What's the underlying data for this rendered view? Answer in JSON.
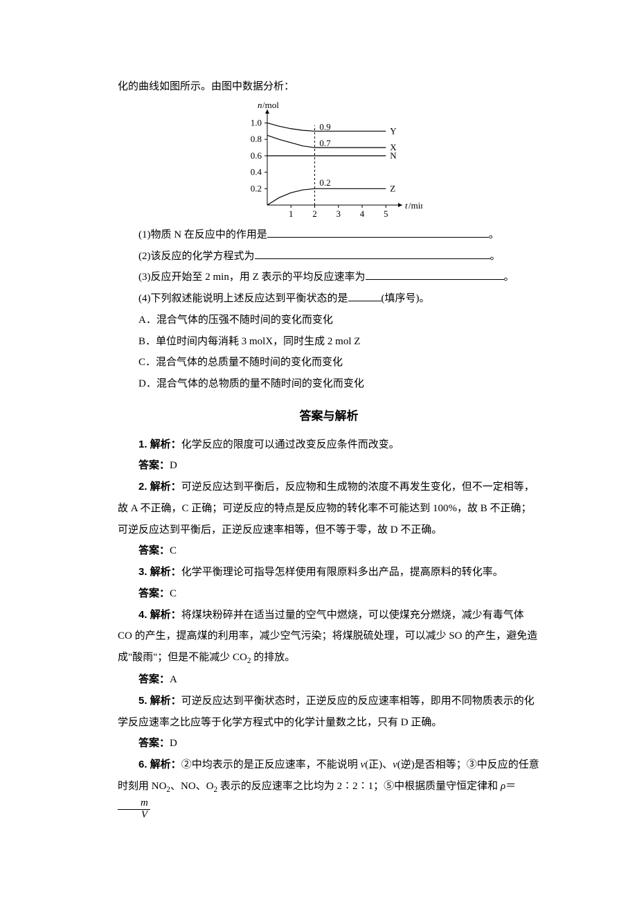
{
  "intro_line": "化的曲线如图所示。由图中数据分析：",
  "chart": {
    "type": "line",
    "x_axis_label": "t/min",
    "y_axis_label": "n/mol",
    "x_ticks": [
      1,
      2,
      3,
      4,
      5
    ],
    "y_ticks": [
      0.2,
      0.4,
      0.6,
      0.8,
      1.0
    ],
    "x_range": [
      0,
      5.4
    ],
    "y_range": [
      0,
      1.08
    ],
    "series": [
      {
        "name": "Y",
        "color": "#000",
        "values": [
          [
            0,
            1.0
          ],
          [
            0.5,
            0.96
          ],
          [
            1,
            0.93
          ],
          [
            1.5,
            0.91
          ],
          [
            2,
            0.9
          ],
          [
            3,
            0.9
          ],
          [
            4,
            0.9
          ],
          [
            5,
            0.9
          ]
        ],
        "end_label": "Y",
        "annot": {
          "x": 2.2,
          "y": 0.9,
          "text": "0.9"
        }
      },
      {
        "name": "X",
        "color": "#000",
        "values": [
          [
            0,
            0.85
          ],
          [
            0.5,
            0.8
          ],
          [
            1,
            0.76
          ],
          [
            1.5,
            0.72
          ],
          [
            2,
            0.7
          ],
          [
            3,
            0.7
          ],
          [
            4,
            0.7
          ],
          [
            5,
            0.7
          ]
        ],
        "end_label": "X",
        "annot": {
          "x": 2.2,
          "y": 0.7,
          "text": "0.7"
        }
      },
      {
        "name": "N",
        "color": "#000",
        "values": [
          [
            0,
            0.6
          ],
          [
            1,
            0.6
          ],
          [
            2,
            0.6
          ],
          [
            3,
            0.6
          ],
          [
            4,
            0.6
          ],
          [
            5,
            0.6
          ]
        ],
        "end_label": "N"
      },
      {
        "name": "Z",
        "color": "#000",
        "values": [
          [
            0,
            0
          ],
          [
            0.5,
            0.09
          ],
          [
            1,
            0.15
          ],
          [
            1.5,
            0.185
          ],
          [
            2,
            0.2
          ],
          [
            3,
            0.2
          ],
          [
            4,
            0.2
          ],
          [
            5,
            0.2
          ]
        ],
        "end_label": "Z",
        "annot": {
          "x": 2.2,
          "y": 0.22,
          "text": "0.2"
        }
      }
    ],
    "vline_x": 2,
    "axis_color": "#000",
    "line_width": 1.2,
    "font_size": 13,
    "bg": "#ffffff"
  },
  "questions": {
    "q1_a": "(1)物质 N 在反应中的作用是",
    "q1_b": "。",
    "q2_a": "(2)该反应的化学方程式为",
    "q2_b": "。",
    "q3_a": "(3)反应开始至 2 min，用 Z 表示的平均反应速率为",
    "q3_b": "。",
    "q4_a": "(4)下列叙述能说明上述反应达到平衡状态的是",
    "q4_b": "(填序号)。",
    "optA": "A．混合气体的压强不随时间的变化而变化",
    "optB": "B．单位时间内每消耗 3 molX，同时生成 2 mol Z",
    "optC": "C．混合气体的总质量不随时间的变化而变化",
    "optD": "D．混合气体的总物质的量不随时间的变化而变化"
  },
  "section_title": "答案与解析",
  "answers": {
    "a1_label": "1. 解析：",
    "a1_text": "化学反应的限度可以通过改变反应条件而改变。",
    "a1_ans_label": "答案：",
    "a1_ans": "D",
    "a2_label": "2. 解析：",
    "a2_text1": "可逆反应达到平衡后，反应物和生成物的浓度不再发生变化，但不一定相等，",
    "a2_text2": "故 A 不正确，C 正确；可逆反应的特点是反应物的转化率不可能达到 100%，故 B 不正确；可逆反应达到平衡后，正逆反应速率相等，但不等于零，故 D 不正确。",
    "a2_ans_label": "答案：",
    "a2_ans": "C",
    "a3_label": "3. 解析：",
    "a3_text": "化学平衡理论可指导怎样使用有限原料多出产品，提高原料的转化率。",
    "a3_ans_label": "答案：",
    "a3_ans": "C",
    "a4_label": "4. 解析：",
    "a4_text": "将煤块粉碎并在适当过量的空气中燃烧，可以使煤充分燃烧，减少有毒气体 CO 的产生，提高煤的利用率，减少空气污染；将煤脱硫处理，可以减少 SO",
    "a4_text_tail1": " 的产生，避免造成\"酸雨\"；但是不能减少 CO",
    "a4_text_tail2": " 的排放。",
    "a4_ans_label": "答案：",
    "a4_ans": "A",
    "a5_label": "5. 解析：",
    "a5_text": "可逆反应达到平衡状态时，正逆反应的反应速率相等，即用不同物质表示的化学反应速率之比应等于化学方程式中的化学计量数之比，只有 D 正确。",
    "a5_ans_label": "答案：",
    "a5_ans": "D",
    "a6_label": "6. 解析：",
    "a6_text_a": "②中均表示的是正反应速率，不能说明 ",
    "a6_v1": "v",
    "a6_t1": "(正)、",
    "a6_v2": "v",
    "a6_t2": "(逆)是否相等；③中反应的任意时刻用 NO",
    "a6_t3": "、NO、O",
    "a6_t4": " 表示的反应速率之比均为 2∶2∶1；⑤中根据质量守恒定律和 ",
    "a6_rho": "ρ",
    "a6_eq": "＝",
    "a6_frac_n": "m",
    "a6_frac_d": "V"
  },
  "sub2": "2"
}
